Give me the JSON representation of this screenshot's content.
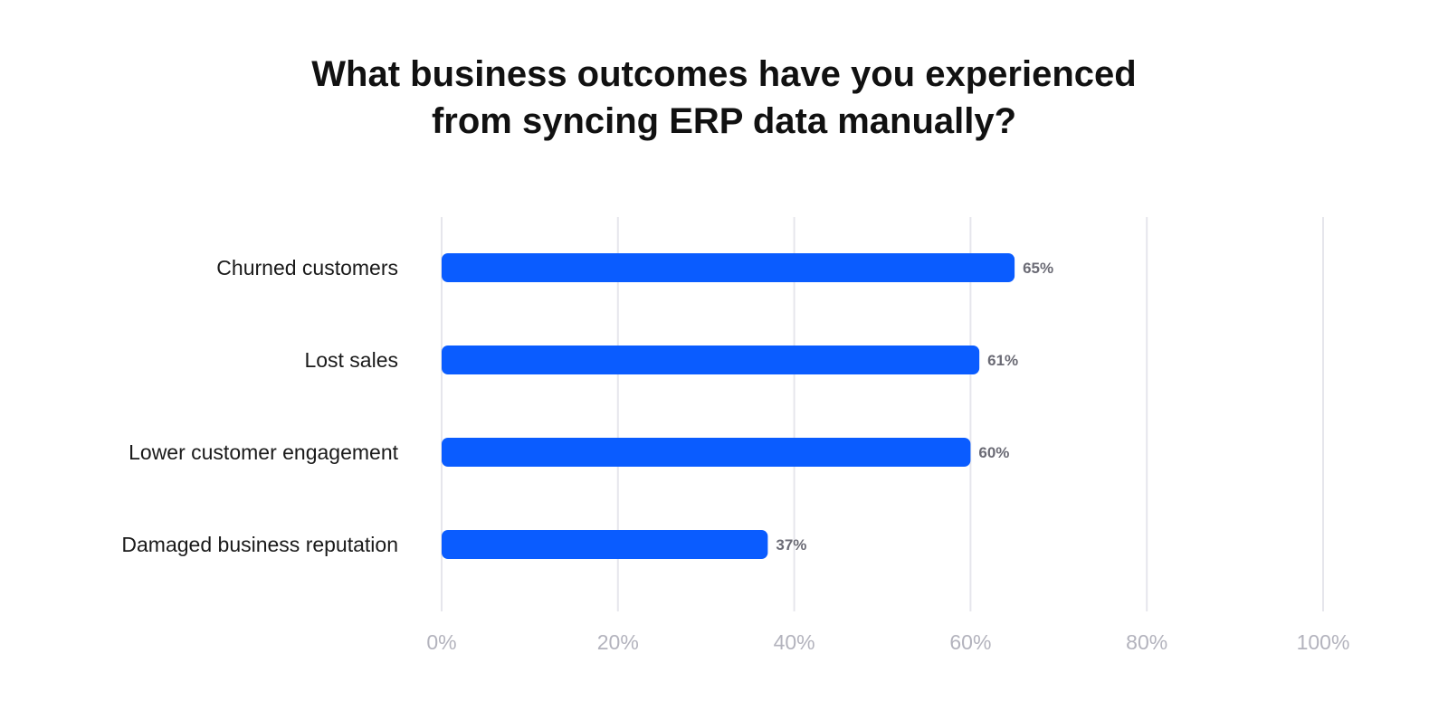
{
  "chart_data": {
    "type": "bar",
    "orientation": "horizontal",
    "title_lines": [
      "What business outcomes have you experienced",
      "from syncing ERP data manually?"
    ],
    "categories": [
      "Churned customers",
      "Lost sales",
      "Lower customer engagement",
      "Damaged business reputation"
    ],
    "values": [
      65,
      61,
      60,
      37
    ],
    "value_labels": [
      "65%",
      "61%",
      "60%",
      "37%"
    ],
    "xlim": [
      0,
      100
    ],
    "x_ticks": [
      0,
      20,
      40,
      60,
      80,
      100
    ],
    "x_tick_labels": [
      "0%",
      "20%",
      "40%",
      "60%",
      "80%",
      "100%"
    ],
    "grid": true,
    "bar_color": "#0a5cff"
  }
}
